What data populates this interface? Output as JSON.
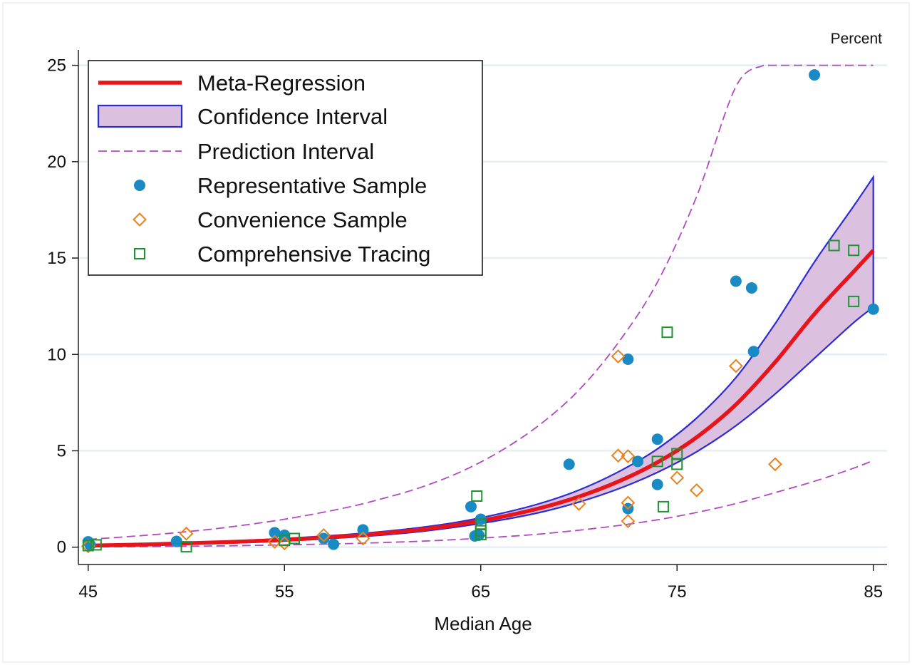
{
  "chart_data": {
    "type": "scatter",
    "title": "",
    "xlabel": "Median Age",
    "ylabel": "",
    "y_unit_label": "Percent",
    "xlim": [
      44.5,
      85.7
    ],
    "ylim": [
      -0.9,
      25.8
    ],
    "x_ticks": [
      45,
      55,
      65,
      75,
      85
    ],
    "y_ticks": [
      0,
      5,
      10,
      15,
      20,
      25
    ],
    "grid": "horizontal",
    "legend_position": "top-left",
    "colors": {
      "regression": "#e8141c",
      "ci_fill": "#dcc0e0",
      "ci_edge": "#2b2bd8",
      "prediction": "#b04ac0",
      "representative": "#1a8ac4",
      "convenience": "#e8821e",
      "tracing": "#1e9430",
      "grid": "#e6eef2"
    },
    "legend": [
      {
        "key": "regression",
        "label": "Meta-Regression"
      },
      {
        "key": "ci",
        "label": "Confidence Interval"
      },
      {
        "key": "prediction",
        "label": "Prediction Interval"
      },
      {
        "key": "representative",
        "label": "Representative Sample"
      },
      {
        "key": "convenience",
        "label": "Convenience Sample"
      },
      {
        "key": "tracing",
        "label": "Comprehensive Tracing"
      }
    ],
    "curves": {
      "x": [
        45,
        48,
        50,
        52,
        55,
        58,
        60,
        62,
        64,
        66,
        68,
        70,
        72,
        74,
        76,
        78,
        80,
        82,
        84,
        85
      ],
      "regression": [
        0.08,
        0.14,
        0.2,
        0.26,
        0.38,
        0.56,
        0.72,
        0.92,
        1.2,
        1.56,
        2.02,
        2.62,
        3.4,
        4.4,
        5.7,
        7.4,
        9.6,
        12.1,
        14.3,
        15.4
      ],
      "ci_lower": [
        0.06,
        0.11,
        0.16,
        0.21,
        0.32,
        0.49,
        0.63,
        0.82,
        1.08,
        1.4,
        1.8,
        2.34,
        3.02,
        3.88,
        4.95,
        6.3,
        7.95,
        9.8,
        11.65,
        12.45
      ],
      "ci_upper": [
        0.1,
        0.17,
        0.24,
        0.31,
        0.45,
        0.64,
        0.81,
        1.03,
        1.33,
        1.74,
        2.26,
        2.96,
        3.9,
        5.1,
        6.7,
        8.8,
        11.6,
        14.8,
        17.7,
        19.2
      ],
      "pi_lower": [
        0.01,
        0.03,
        0.05,
        0.07,
        0.12,
        0.18,
        0.24,
        0.31,
        0.41,
        0.53,
        0.68,
        0.88,
        1.12,
        1.42,
        1.8,
        2.26,
        2.83,
        3.42,
        4.1,
        4.5
      ],
      "pi_upper": [
        0.4,
        0.62,
        0.8,
        1.02,
        1.45,
        2.02,
        2.52,
        3.12,
        3.92,
        4.98,
        6.35,
        8.15,
        10.6,
        13.75,
        18.2,
        23.9,
        25.0,
        25.0,
        25.0,
        25.0
      ],
      "pi_upper_cap_x": 79.4
    },
    "series": [
      {
        "name": "Representative Sample",
        "marker": "circle",
        "points": [
          [
            45,
            0.28
          ],
          [
            45.1,
            0.12
          ],
          [
            49.5,
            0.3
          ],
          [
            54.5,
            0.75
          ],
          [
            55,
            0.62
          ],
          [
            57,
            0.45
          ],
          [
            57.5,
            0.15
          ],
          [
            59,
            0.9
          ],
          [
            64.5,
            2.1
          ],
          [
            64.7,
            0.58
          ],
          [
            64.9,
            0.62
          ],
          [
            65,
            1.45
          ],
          [
            69.5,
            4.3
          ],
          [
            72.5,
            9.75
          ],
          [
            72.5,
            2.0
          ],
          [
            73,
            4.45
          ],
          [
            74,
            5.6
          ],
          [
            74,
            3.25
          ],
          [
            78,
            13.8
          ],
          [
            78.8,
            13.45
          ],
          [
            78.9,
            10.15
          ],
          [
            82,
            24.5
          ],
          [
            85,
            12.35
          ]
        ]
      },
      {
        "name": "Convenience Sample",
        "marker": "diamond",
        "points": [
          [
            45,
            0.05
          ],
          [
            50,
            0.7
          ],
          [
            54.5,
            0.28
          ],
          [
            55,
            0.2
          ],
          [
            57,
            0.62
          ],
          [
            59,
            0.45
          ],
          [
            70,
            2.25
          ],
          [
            72,
            9.9
          ],
          [
            72,
            4.75
          ],
          [
            72.5,
            4.72
          ],
          [
            72.5,
            2.3
          ],
          [
            72.5,
            1.35
          ],
          [
            75,
            3.6
          ],
          [
            76,
            2.95
          ],
          [
            78,
            9.4
          ],
          [
            80,
            4.3
          ]
        ]
      },
      {
        "name": "Comprehensive Tracing",
        "marker": "square",
        "points": [
          [
            45,
            0.08
          ],
          [
            45.4,
            0.12
          ],
          [
            50,
            0.02
          ],
          [
            55,
            0.35
          ],
          [
            55.5,
            0.45
          ],
          [
            64.8,
            2.65
          ],
          [
            65,
            1.2
          ],
          [
            65,
            0.85
          ],
          [
            65,
            0.65
          ],
          [
            74,
            4.45
          ],
          [
            74.3,
            2.1
          ],
          [
            74.5,
            11.15
          ],
          [
            75,
            4.85
          ],
          [
            75,
            4.3
          ],
          [
            83,
            15.65
          ],
          [
            84,
            15.4
          ],
          [
            84,
            12.75
          ]
        ]
      }
    ]
  }
}
